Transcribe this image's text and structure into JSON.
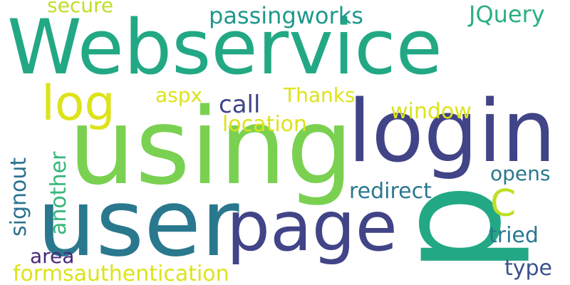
{
  "cloud": {
    "background": "#ffffff",
    "words": [
      {
        "text": "Webservice",
        "color": "#22a884"
      },
      {
        "text": "using",
        "color": "#7ad151"
      },
      {
        "text": "user",
        "color": "#2a788e"
      },
      {
        "text": "login",
        "color": "#414487"
      },
      {
        "text": "p",
        "color": "#22a884"
      },
      {
        "text": "page",
        "color": "#414487"
      },
      {
        "text": "log",
        "color": "#dde318"
      },
      {
        "text": "C",
        "color": "#bddf26"
      },
      {
        "text": "secure",
        "color": "#bddf26"
      },
      {
        "text": "passingworks",
        "color": "#1f988b"
      },
      {
        "text": "JQuery",
        "color": "#2ab07f"
      },
      {
        "text": "aspx",
        "color": "#dde318"
      },
      {
        "text": "Thanks",
        "color": "#dde318"
      },
      {
        "text": "call",
        "color": "#414487"
      },
      {
        "text": "window",
        "color": "#dde318"
      },
      {
        "text": "location",
        "color": "#dde318"
      },
      {
        "text": "opens",
        "color": "#2a788e"
      },
      {
        "text": "redirect",
        "color": "#2a788e"
      },
      {
        "text": "tried",
        "color": "#2a788e"
      },
      {
        "text": "type",
        "color": "#3b528b"
      },
      {
        "text": "area",
        "color": "#482878"
      },
      {
        "text": "formsauthentication",
        "color": "#dde318"
      },
      {
        "text": "signout",
        "color": "#2c728e"
      },
      {
        "text": "another",
        "color": "#35b779"
      }
    ]
  }
}
